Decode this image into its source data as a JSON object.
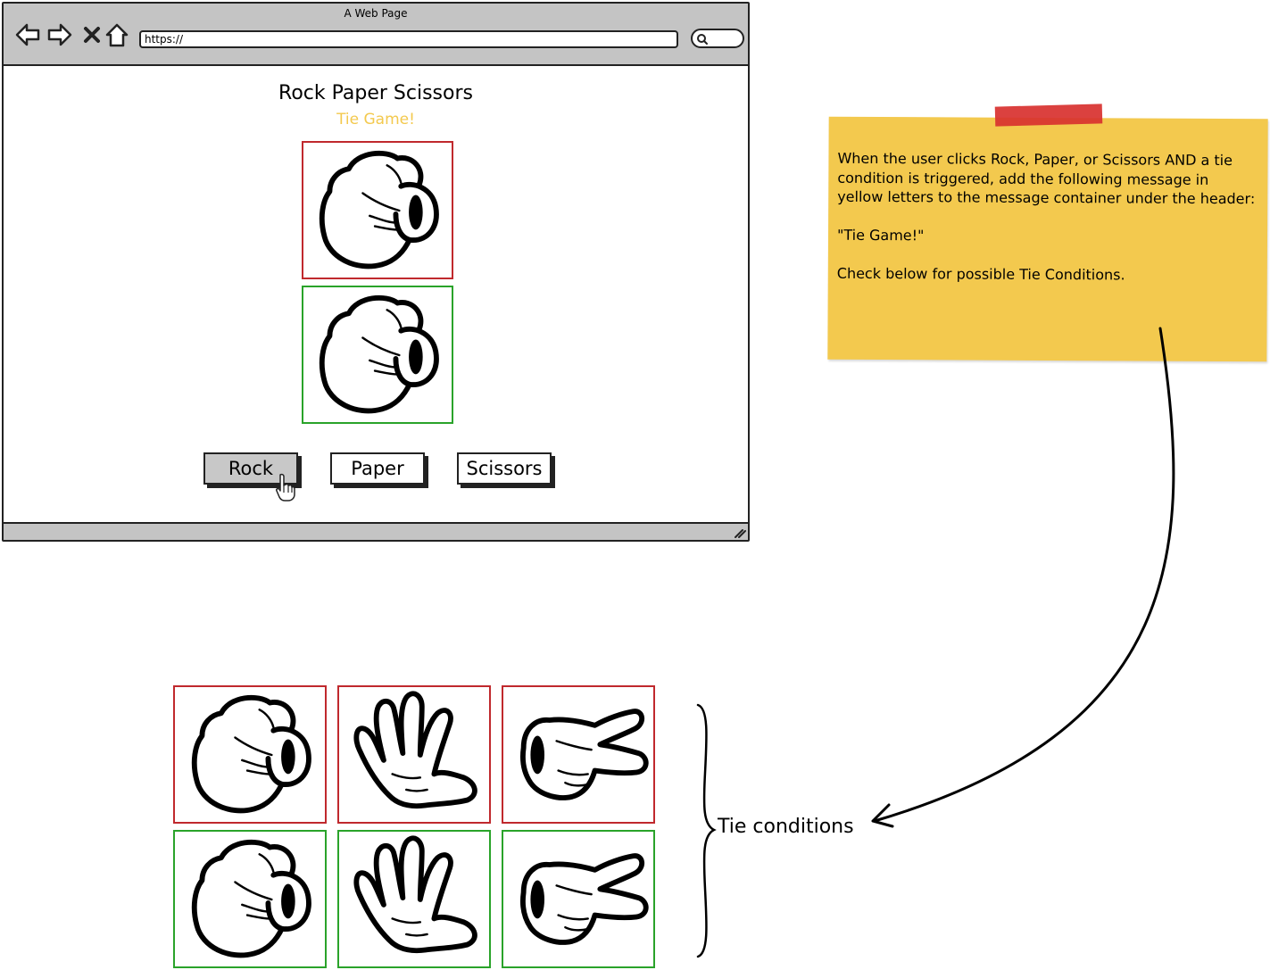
{
  "browser": {
    "window_title": "A Web Page",
    "url": "https://",
    "nav_icons": [
      "back-arrow-icon",
      "forward-arrow-icon",
      "close-x-icon",
      "home-icon"
    ],
    "search_icon": "search-icon"
  },
  "page": {
    "heading": "Rock Paper Scissors",
    "message": "Tie Game!",
    "message_color": "#f3c94e",
    "player_choice": "rock",
    "computer_choice": "rock",
    "buttons": {
      "rock": "Rock",
      "paper": "Paper",
      "scissors": "Scissors"
    },
    "pressed_button": "Rock"
  },
  "note": {
    "text": "When the user clicks Rock, Paper, or Scissors AND a tie condition is triggered, add the following message in yellow letters to the message container under the header:\n\n \"Tie Game!\"\n\nCheck below for possible Tie Conditions.",
    "color": "#f3c94e",
    "tape_color": "#d8312f"
  },
  "tie_conditions": {
    "label": "Tie conditions",
    "top_row": [
      "rock",
      "paper",
      "scissors"
    ],
    "bottom_row": [
      "rock",
      "paper",
      "scissors"
    ]
  },
  "colors": {
    "red_border": "#c0292d",
    "green_border": "#2aa32a",
    "toolbar": "#c4c4c4"
  }
}
